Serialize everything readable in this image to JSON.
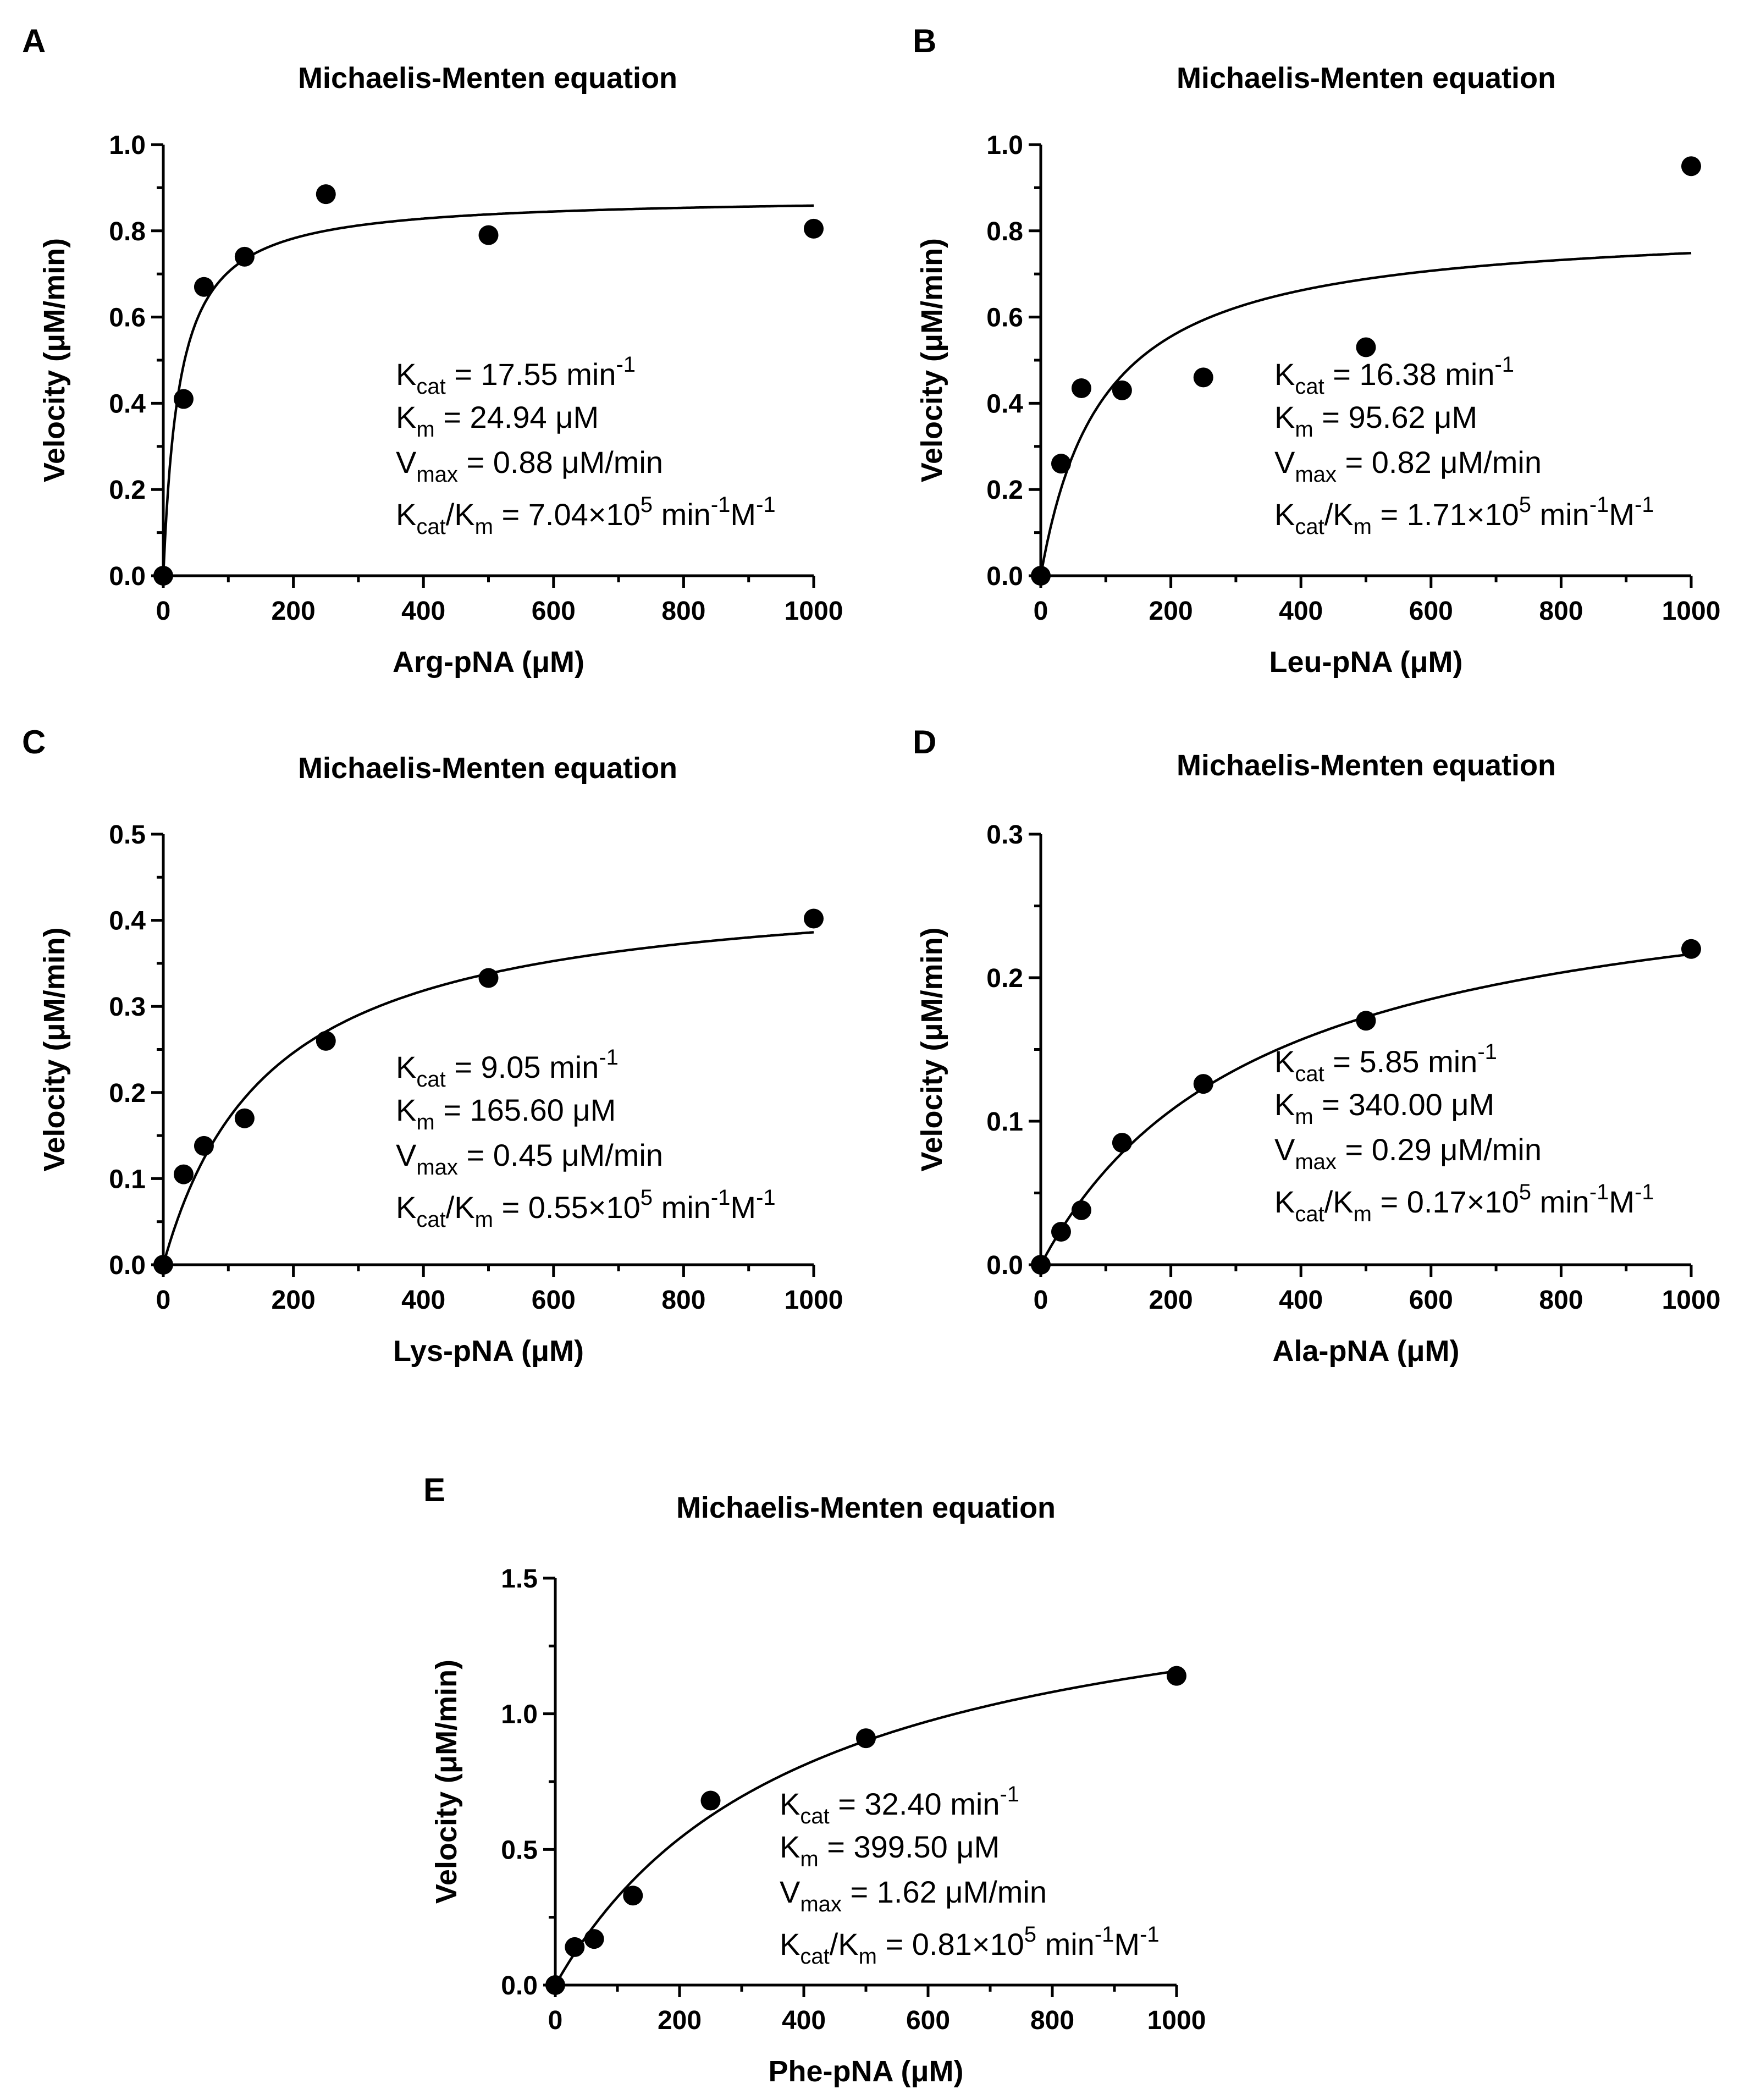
{
  "chart_data": [
    {
      "panel": "A",
      "type": "scatter",
      "title": "Michaelis-Menten equation",
      "xlabel": "Arg-pNA (μM)",
      "ylabel": "Velocity (μM/min)",
      "xlim": [
        0,
        1000
      ],
      "ylim": [
        0,
        1.0
      ],
      "xticks": [
        "0",
        "200",
        "400",
        "600",
        "800",
        "1000"
      ],
      "yticks": [
        "0.0",
        "0.2",
        "0.4",
        "0.6",
        "0.8",
        "1.0"
      ],
      "x": [
        0,
        31.25,
        62.5,
        125,
        250,
        500,
        1000
      ],
      "y": [
        0,
        0.41,
        0.67,
        0.74,
        0.885,
        0.79,
        0.805
      ],
      "fit": {
        "model": "Michaelis-Menten",
        "vmax": 0.88,
        "km": 24.94
      },
      "annotations": [
        {
          "main": "K",
          "sub": "cat",
          "rest": " = 17.55 min",
          "sup": "-1"
        },
        {
          "main": "K",
          "sub": "m",
          "rest": " = 24.94 μM"
        },
        {
          "main": "V",
          "sub": "max",
          "rest": " = 0.88 μM/min"
        },
        {
          "main": "K",
          "sub": "cat",
          "rest": "/K",
          "sub2": "m",
          "rest2": " = 7.04×10",
          "sup": "5",
          "rest3": " min",
          "sup2": "-1",
          "rest4": "M",
          "sup3": "-1"
        }
      ]
    },
    {
      "panel": "B",
      "type": "scatter",
      "title": "Michaelis-Menten equation",
      "xlabel": "Leu-pNA (μM)",
      "ylabel": "Velocity (μM/min)",
      "xlim": [
        0,
        1000
      ],
      "ylim": [
        0,
        1.0
      ],
      "xticks": [
        "0",
        "200",
        "400",
        "600",
        "800",
        "1000"
      ],
      "yticks": [
        "0.0",
        "0.2",
        "0.4",
        "0.6",
        "0.8",
        "1.0"
      ],
      "x": [
        0,
        31.25,
        62.5,
        125,
        250,
        500,
        1000
      ],
      "y": [
        0,
        0.26,
        0.435,
        0.43,
        0.46,
        0.53,
        0.95
      ],
      "fit": {
        "model": "Michaelis-Menten",
        "vmax": 0.82,
        "km": 95.62
      },
      "annotations": [
        {
          "main": "K",
          "sub": "cat",
          "rest": " = 16.38 min",
          "sup": "-1"
        },
        {
          "main": "K",
          "sub": "m",
          "rest": " = 95.62 μM"
        },
        {
          "main": "V",
          "sub": "max",
          "rest": " = 0.82 μM/min"
        },
        {
          "main": "K",
          "sub": "cat",
          "rest": "/K",
          "sub2": "m",
          "rest2": " = 1.71×10",
          "sup": "5",
          "rest3": " min",
          "sup2": "-1",
          "rest4": "M",
          "sup3": "-1"
        }
      ]
    },
    {
      "panel": "C",
      "type": "scatter",
      "title": "Michaelis-Menten equation",
      "xlabel": "Lys-pNA (μM)",
      "ylabel": "Velocity (μM/min)",
      "xlim": [
        0,
        1000
      ],
      "ylim": [
        0,
        0.5
      ],
      "xticks": [
        "0",
        "200",
        "400",
        "600",
        "800",
        "1000"
      ],
      "yticks": [
        "0.0",
        "0.1",
        "0.2",
        "0.3",
        "0.4",
        "0.5"
      ],
      "x": [
        0,
        31.25,
        62.5,
        125,
        250,
        500,
        1000
      ],
      "y": [
        0,
        0.105,
        0.138,
        0.17,
        0.26,
        0.333,
        0.402
      ],
      "fit": {
        "model": "Michaelis-Menten",
        "vmax": 0.45,
        "km": 165.6
      },
      "annotations": [
        {
          "main": "K",
          "sub": "cat",
          "rest": " = 9.05 min",
          "sup": "-1"
        },
        {
          "main": "K",
          "sub": "m",
          "rest": " = 165.60 μM"
        },
        {
          "main": "V",
          "sub": "max",
          "rest": " = 0.45 μM/min"
        },
        {
          "main": "K",
          "sub": "cat",
          "rest": "/K",
          "sub2": "m",
          "rest2": " = 0.55×10",
          "sup": "5",
          "rest3": " min",
          "sup2": "-1",
          "rest4": "M",
          "sup3": "-1"
        }
      ]
    },
    {
      "panel": "D",
      "type": "scatter",
      "title": "Michaelis-Menten equation",
      "xlabel": "Ala-pNA (μM)",
      "ylabel": "Velocity (μM/min)",
      "xlim": [
        0,
        1000
      ],
      "ylim": [
        0,
        0.3
      ],
      "xticks": [
        "0",
        "200",
        "400",
        "600",
        "800",
        "1000"
      ],
      "yticks": [
        "0.0",
        "0.1",
        "0.2",
        "0.3"
      ],
      "x": [
        0,
        31.25,
        62.5,
        125,
        250,
        500,
        1000
      ],
      "y": [
        0,
        0.023,
        0.038,
        0.085,
        0.126,
        0.17,
        0.22
      ],
      "fit": {
        "model": "Michaelis-Menten",
        "vmax": 0.29,
        "km": 340.0
      },
      "annotations": [
        {
          "main": "K",
          "sub": "cat",
          "rest": " = 5.85 min",
          "sup": "-1"
        },
        {
          "main": "K",
          "sub": "m",
          "rest": " = 340.00 μM"
        },
        {
          "main": "V",
          "sub": "max",
          "rest": " = 0.29 μM/min"
        },
        {
          "main": "K",
          "sub": "cat",
          "rest": "/K",
          "sub2": "m",
          "rest2": " = 0.17×10",
          "sup": "5",
          "rest3": " min",
          "sup2": "-1",
          "rest4": "M",
          "sup3": "-1"
        }
      ]
    },
    {
      "panel": "E",
      "type": "scatter",
      "title": "Michaelis-Menten equation",
      "xlabel": "Phe-pNA (μM)",
      "ylabel": "Velocity (μM/min)",
      "xlim": [
        0,
        1000
      ],
      "ylim": [
        0,
        1.5
      ],
      "xticks": [
        "0",
        "200",
        "400",
        "600",
        "800",
        "1000"
      ],
      "yticks": [
        "0.0",
        "0.5",
        "1.0",
        "1.5"
      ],
      "x": [
        0,
        31.25,
        62.5,
        125,
        250,
        500,
        1000
      ],
      "y": [
        0,
        0.14,
        0.17,
        0.33,
        0.68,
        0.91,
        1.14
      ],
      "fit": {
        "model": "Michaelis-Menten",
        "vmax": 1.62,
        "km": 399.5
      },
      "annotations": [
        {
          "main": "K",
          "sub": "cat",
          "rest": " = 32.40 min",
          "sup": "-1"
        },
        {
          "main": "K",
          "sub": "m",
          "rest": " = 399.50 μM"
        },
        {
          "main": "V",
          "sub": "max",
          "rest": " = 1.62 μM/min"
        },
        {
          "main": "K",
          "sub": "cat",
          "rest": "/K",
          "sub2": "m",
          "rest2": " = 0.81×10",
          "sup": "5",
          "rest3": " min",
          "sup2": "-1",
          "rest4": "M",
          "sup3": "-1"
        }
      ]
    }
  ]
}
